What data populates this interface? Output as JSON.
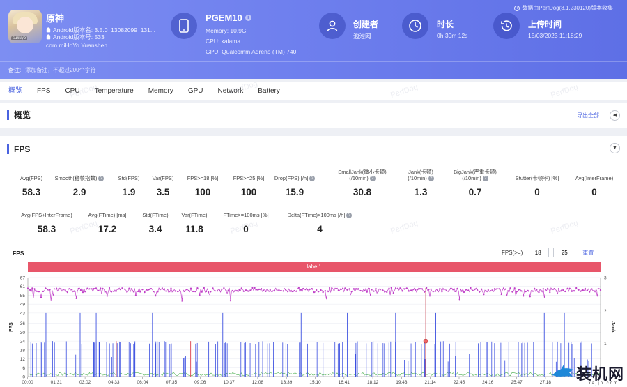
{
  "header": {
    "note": "数据由PerfDog(8.1.230120)版本收集",
    "app": {
      "name": "原神",
      "icon_tag": "sukuyo",
      "version_line": "Android版本名: 3.5.0_13082099_131...",
      "build_line": "Android版本号: 533",
      "package": "com.miHoYo.Yuanshen"
    },
    "device": {
      "name": "PGEM10",
      "memory": "Memory: 10.9G",
      "cpu": "CPU: kalama",
      "gpu": "GPU: Qualcomm Adreno (TM) 740"
    },
    "creator": {
      "title": "创建者",
      "value": "泡泡网"
    },
    "duration": {
      "title": "时长",
      "value": "0h 30m 12s"
    },
    "upload": {
      "title": "上传时间",
      "value": "15/03/2023 11:18:29"
    },
    "remark_label": "备注:",
    "remark_placeholder": "添加备注，不超过200个字符"
  },
  "tabs": [
    "概览",
    "FPS",
    "CPU",
    "Temperature",
    "Memory",
    "GPU",
    "Network",
    "Battery"
  ],
  "overview": {
    "title": "概览",
    "export": "导出全部",
    "collapse_icon": "◀"
  },
  "fps": {
    "title": "FPS",
    "toggle_icon": "▼",
    "stats_row1": [
      {
        "label": "Avg(FPS)",
        "value": "58.3"
      },
      {
        "label": "Smooth(稳帧指数)",
        "value": "2.9",
        "help": true
      },
      {
        "label": "Std(FPS)",
        "value": "1.9"
      },
      {
        "label": "Var(FPS)",
        "value": "3.5"
      },
      {
        "label": "FPS>=18 [%]",
        "value": "100"
      },
      {
        "label": "FPS>=25 [%]",
        "value": "100"
      },
      {
        "label": "Drop(FPS) [/h]",
        "value": "15.9",
        "help": true
      },
      {
        "label": "SmallJank(微小卡顿)",
        "label2": "(/10min)",
        "value": "30.8",
        "help": true
      },
      {
        "label": "Jank(卡顿)",
        "label2": "(/10min)",
        "value": "1.3",
        "help": true
      },
      {
        "label": "BigJank(严重卡顿)",
        "label2": "(/10min)",
        "value": "0.7",
        "help": true
      },
      {
        "label": "Stutter(卡顿率) [%]",
        "value": "0"
      },
      {
        "label": "Avg(InterFrame)",
        "value": "0"
      }
    ],
    "stats_row2": [
      {
        "label": "Avg(FPS+InterFrame)",
        "value": "58.3"
      },
      {
        "label": "Avg(FTime) [ms]",
        "value": "17.2"
      },
      {
        "label": "Std(FTime)",
        "value": "3.4"
      },
      {
        "label": "Var(FTime)",
        "value": "11.8"
      },
      {
        "label": "FTime>=100ms [%]",
        "value": "0"
      },
      {
        "label": "Delta(FTime)>100ms [/h]",
        "value": "4",
        "help": true
      }
    ],
    "chart_title": "FPS",
    "filter": {
      "label": "FPS(>=)",
      "value1": "18",
      "value2": "25",
      "reset": "重置"
    },
    "label_bar": "label1",
    "watermark": "PerfDog"
  },
  "chart_data": {
    "type": "line",
    "title": "FPS",
    "ylabel": "FPS",
    "y2label": "Jank",
    "y_ticks": [
      0,
      6,
      12,
      18,
      24,
      30,
      36,
      43,
      49,
      55,
      61,
      67
    ],
    "ylim": [
      0,
      67
    ],
    "y2_ticks": [
      1,
      2,
      3
    ],
    "y2lim": [
      0,
      3
    ],
    "x_ticks": [
      "00:00",
      "01:31",
      "03:02",
      "04:33",
      "06:04",
      "07:35",
      "09:06",
      "10:37",
      "12:08",
      "13:39",
      "15:10",
      "16:41",
      "18:12",
      "19:43",
      "21:14",
      "22:45",
      "24:16",
      "25:47",
      "27:18"
    ],
    "series": [
      {
        "name": "FPS",
        "color": "#c040c8",
        "baseline": 58.5,
        "jitter": 1.5
      },
      {
        "name": "Jank",
        "color": "#3b4fe0"
      },
      {
        "name": "BigJank",
        "color": "#e0505a"
      },
      {
        "name": "InterFrame",
        "color": "#4caf50"
      }
    ],
    "jank_spikes_min": [
      0.9,
      2.6,
      3.4,
      6.2,
      9.7,
      13.6,
      15.9,
      18.3,
      20.3,
      22.9,
      25.7,
      26.7
    ],
    "bigjank_min": [
      4.4,
      8.1,
      19.8
    ]
  },
  "logo_text": "装机网",
  "logo_url": "xajjn.com"
}
